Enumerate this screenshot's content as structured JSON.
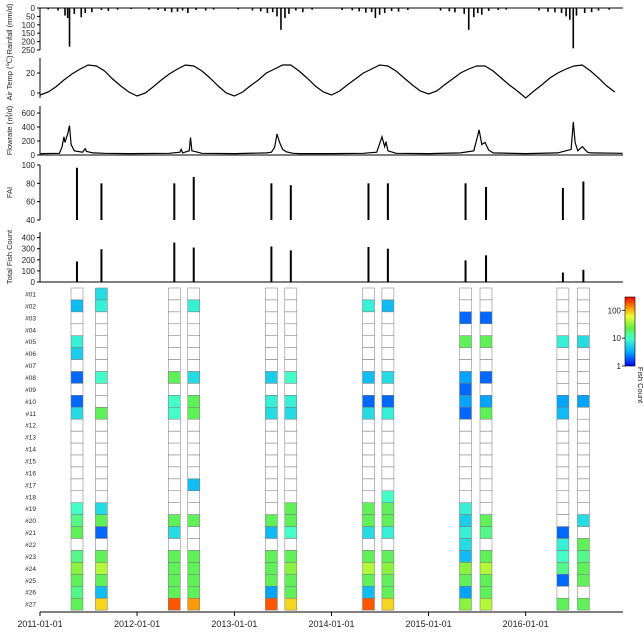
{
  "chart_data": [
    {
      "type": "bar",
      "ylabel": "Rainfall (mm/d)",
      "yticks": [
        0,
        50,
        100,
        150,
        200,
        250
      ],
      "ylim": [
        0,
        250
      ],
      "inverted": true,
      "x": [
        "2011-02-01",
        "2011-03-10",
        "2011-04-05",
        "2011-04-15",
        "2011-04-22",
        "2011-05-10",
        "2011-06-05",
        "2011-06-20",
        "2011-07-15",
        "2011-08-20",
        "2011-09-15",
        "2011-10-20",
        "2011-12-10",
        "2012-02-15",
        "2012-03-20",
        "2012-04-15",
        "2012-05-10",
        "2012-06-01",
        "2012-06-20",
        "2012-07-10",
        "2012-08-10",
        "2012-09-15",
        "2012-10-15",
        "2013-01-15",
        "2013-03-10",
        "2013-04-10",
        "2013-05-05",
        "2013-05-25",
        "2013-06-10",
        "2013-06-25",
        "2013-07-10",
        "2013-07-25",
        "2013-08-20",
        "2013-09-15",
        "2013-10-20",
        "2014-02-10",
        "2014-03-20",
        "2014-04-15",
        "2014-05-10",
        "2014-06-01",
        "2014-06-15",
        "2014-07-01",
        "2014-07-20",
        "2014-08-15",
        "2014-09-10",
        "2014-10-15",
        "2015-02-15",
        "2015-03-20",
        "2015-04-10",
        "2015-05-15",
        "2015-06-01",
        "2015-06-20",
        "2015-07-05",
        "2015-07-20",
        "2015-08-15",
        "2015-09-20",
        "2015-10-20",
        "2016-02-20",
        "2016-03-25",
        "2016-04-20",
        "2016-05-15",
        "2016-06-01",
        "2016-06-15",
        "2016-06-28",
        "2016-07-10",
        "2016-08-10",
        "2016-09-05",
        "2016-10-01",
        "2016-11-10"
      ],
      "values": [
        8,
        15,
        45,
        60,
        230,
        35,
        55,
        30,
        25,
        12,
        18,
        10,
        6,
        10,
        12,
        18,
        25,
        22,
        15,
        30,
        12,
        15,
        10,
        8,
        14,
        20,
        30,
        25,
        50,
        130,
        60,
        35,
        15,
        25,
        10,
        12,
        14,
        20,
        28,
        25,
        60,
        40,
        30,
        18,
        22,
        12,
        15,
        20,
        26,
        35,
        130,
        55,
        30,
        40,
        18,
        12,
        10,
        15,
        22,
        26,
        30,
        50,
        70,
        240,
        45,
        30,
        25,
        15,
        10
      ]
    },
    {
      "type": "line",
      "ylabel": "Air Temp (℃)",
      "yticks": [
        0,
        20
      ],
      "ylim": [
        -5,
        35
      ],
      "x": [
        "2011-01-01",
        "2011-02-01",
        "2011-03-01",
        "2011-04-01",
        "2011-05-01",
        "2011-06-01",
        "2011-07-01",
        "2011-08-01",
        "2011-09-01",
        "2011-10-01",
        "2011-11-01",
        "2011-12-01",
        "2012-01-01",
        "2012-02-01",
        "2012-03-01",
        "2012-04-01",
        "2012-05-01",
        "2012-06-01",
        "2012-07-01",
        "2012-08-01",
        "2012-09-01",
        "2012-10-01",
        "2012-11-01",
        "2012-12-01",
        "2013-01-01",
        "2013-02-01",
        "2013-03-01",
        "2013-04-01",
        "2013-05-01",
        "2013-06-01",
        "2013-07-01",
        "2013-08-01",
        "2013-09-01",
        "2013-10-01",
        "2013-11-01",
        "2013-12-01",
        "2014-01-01",
        "2014-02-01",
        "2014-03-01",
        "2014-04-01",
        "2014-05-01",
        "2014-06-01",
        "2014-07-01",
        "2014-08-01",
        "2014-09-01",
        "2014-10-01",
        "2014-11-01",
        "2014-12-01",
        "2015-01-01",
        "2015-02-01",
        "2015-03-01",
        "2015-04-01",
        "2015-05-01",
        "2015-06-01",
        "2015-07-01",
        "2015-08-01",
        "2015-09-01",
        "2015-10-01",
        "2015-11-01",
        "2015-12-01",
        "2016-01-01",
        "2016-02-01",
        "2016-03-01",
        "2016-04-01",
        "2016-05-01",
        "2016-06-01",
        "2016-07-01",
        "2016-08-01",
        "2016-09-01",
        "2016-10-01",
        "2016-11-01",
        "2016-12-01"
      ],
      "values": [
        -2,
        1,
        6,
        13,
        19,
        24,
        28,
        27,
        22,
        14,
        7,
        1,
        -3,
        0,
        6,
        13,
        19,
        24,
        28,
        27,
        22,
        15,
        7,
        0,
        -3,
        1,
        7,
        13,
        20,
        24,
        28,
        28,
        22,
        15,
        7,
        1,
        -2,
        2,
        8,
        14,
        20,
        24,
        28,
        27,
        22,
        15,
        8,
        2,
        -1,
        2,
        8,
        14,
        20,
        24,
        27,
        27,
        22,
        15,
        8,
        2,
        -5,
        2,
        8,
        15,
        20,
        24,
        27,
        28,
        22,
        15,
        7,
        1
      ]
    },
    {
      "type": "line",
      "ylabel": "Flowrate (㎥/d)",
      "yticks": [
        0,
        200,
        400,
        600
      ],
      "ylim": [
        0,
        700
      ],
      "x": [
        "2011-01-01",
        "2011-03-15",
        "2011-03-25",
        "2011-04-01",
        "2011-04-05",
        "2011-04-10",
        "2011-04-15",
        "2011-04-22",
        "2011-04-28",
        "2011-05-10",
        "2011-06-10",
        "2011-06-20",
        "2011-06-25",
        "2011-07-20",
        "2011-09-01",
        "2011-12-01",
        "2012-05-01",
        "2012-06-10",
        "2012-06-15",
        "2012-06-20",
        "2012-07-15",
        "2012-07-20",
        "2012-07-25",
        "2012-09-01",
        "2013-01-01",
        "2013-05-01",
        "2013-05-20",
        "2013-06-01",
        "2013-06-10",
        "2013-06-20",
        "2013-07-01",
        "2013-07-15",
        "2013-08-10",
        "2013-09-01",
        "2014-01-01",
        "2014-05-01",
        "2014-06-20",
        "2014-07-01",
        "2014-07-10",
        "2014-07-20",
        "2014-07-25",
        "2014-08-01",
        "2014-09-01",
        "2015-01-01",
        "2015-05-01",
        "2015-06-20",
        "2015-07-01",
        "2015-07-10",
        "2015-07-20",
        "2015-08-01",
        "2015-08-15",
        "2015-09-01",
        "2016-01-01",
        "2016-05-01",
        "2016-06-20",
        "2016-06-28",
        "2016-07-05",
        "2016-07-15",
        "2016-08-01",
        "2016-08-20",
        "2016-09-01",
        "2016-12-31"
      ],
      "values": [
        20,
        25,
        120,
        260,
        180,
        240,
        300,
        420,
        150,
        60,
        40,
        90,
        50,
        30,
        25,
        20,
        25,
        40,
        80,
        30,
        60,
        250,
        60,
        25,
        20,
        30,
        40,
        110,
        300,
        180,
        80,
        45,
        25,
        20,
        20,
        25,
        40,
        160,
        260,
        120,
        190,
        60,
        25,
        20,
        30,
        60,
        220,
        360,
        150,
        180,
        70,
        30,
        20,
        30,
        80,
        470,
        180,
        60,
        120,
        40,
        30,
        25
      ]
    },
    {
      "type": "bar",
      "ylabel": "FAI",
      "yticks": [
        40,
        60,
        80,
        100
      ],
      "ylim": [
        40,
        100
      ],
      "x": [
        "2011-05-20",
        "2011-08-20",
        "2012-05-20",
        "2012-08-01",
        "2013-05-20",
        "2013-08-01",
        "2014-05-20",
        "2014-08-01",
        "2015-05-20",
        "2015-08-05",
        "2016-05-20",
        "2016-08-05"
      ],
      "values": [
        97,
        80,
        80,
        87,
        80,
        78,
        80,
        80,
        80,
        76,
        75,
        82
      ]
    },
    {
      "type": "bar",
      "ylabel": "Total Fish Count",
      "yticks": [
        0,
        100,
        200,
        300,
        400
      ],
      "ylim": [
        0,
        450
      ],
      "x": [
        "2011-05-20",
        "2011-08-20",
        "2012-05-20",
        "2012-08-01",
        "2013-05-20",
        "2013-08-01",
        "2014-05-20",
        "2014-08-01",
        "2015-05-20",
        "2015-08-05",
        "2016-05-20",
        "2016-08-05"
      ],
      "values": [
        185,
        295,
        355,
        310,
        320,
        285,
        315,
        300,
        195,
        240,
        85,
        110
      ]
    },
    {
      "type": "heatmap",
      "sites": [
        "#01",
        "#02",
        "#03",
        "#04",
        "#05",
        "#06",
        "#07",
        "#08",
        "#09",
        "#10",
        "#11",
        "#12",
        "#13",
        "#14",
        "#15",
        "#16",
        "#17",
        "#18",
        "#19",
        "#20",
        "#21",
        "#22",
        "#23",
        "#24",
        "#25",
        "#26",
        "#27"
      ],
      "x": [
        "2011-05-20",
        "2011-08-20",
        "2012-05-20",
        "2012-08-01",
        "2013-05-20",
        "2013-08-01",
        "2014-05-20",
        "2014-08-01",
        "2015-05-20",
        "2015-08-05",
        "2016-05-20",
        "2016-08-05"
      ],
      "values": [
        [
          0,
          6,
          0,
          0,
          0,
          0,
          0,
          0,
          0,
          0,
          0,
          0
        ],
        [
          4,
          8,
          0,
          8,
          0,
          0,
          8,
          4,
          0,
          0,
          0,
          0
        ],
        [
          0,
          0,
          0,
          0,
          0,
          0,
          0,
          0,
          2,
          2,
          0,
          0
        ],
        [
          0,
          0,
          0,
          0,
          0,
          0,
          0,
          0,
          0,
          0,
          0,
          0
        ],
        [
          8,
          0,
          0,
          0,
          0,
          0,
          0,
          0,
          20,
          20,
          8,
          6
        ],
        [
          5,
          0,
          0,
          0,
          0,
          0,
          0,
          0,
          0,
          0,
          0,
          0
        ],
        [
          0,
          0,
          0,
          0,
          0,
          0,
          0,
          0,
          0,
          0,
          0,
          0
        ],
        [
          2,
          10,
          20,
          6,
          5,
          10,
          4,
          6,
          3,
          2,
          0,
          0
        ],
        [
          0,
          0,
          0,
          0,
          0,
          0,
          0,
          0,
          2,
          0,
          0,
          0
        ],
        [
          2,
          0,
          10,
          20,
          8,
          8,
          2,
          2,
          3,
          3,
          3,
          3
        ],
        [
          6,
          20,
          10,
          20,
          6,
          6,
          6,
          8,
          2,
          20,
          4,
          0
        ],
        [
          0,
          0,
          0,
          0,
          0,
          0,
          0,
          0,
          0,
          0,
          0,
          0
        ],
        [
          0,
          0,
          0,
          0,
          0,
          0,
          0,
          0,
          0,
          0,
          0,
          0
        ],
        [
          0,
          0,
          0,
          0,
          0,
          0,
          0,
          0,
          0,
          0,
          0,
          0
        ],
        [
          0,
          0,
          0,
          0,
          0,
          0,
          0,
          0,
          0,
          0,
          0,
          0
        ],
        [
          0,
          0,
          0,
          0,
          0,
          0,
          0,
          0,
          0,
          0,
          0,
          0
        ],
        [
          0,
          0,
          0,
          4,
          0,
          0,
          0,
          0,
          0,
          0,
          0,
          0
        ],
        [
          0,
          0,
          0,
          0,
          0,
          0,
          0,
          10,
          0,
          0,
          0,
          0
        ],
        [
          10,
          6,
          0,
          0,
          0,
          20,
          20,
          20,
          8,
          0,
          0,
          0
        ],
        [
          15,
          20,
          20,
          20,
          20,
          20,
          20,
          20,
          5,
          20,
          0,
          6
        ],
        [
          20,
          2,
          6,
          0,
          4,
          10,
          6,
          8,
          8,
          15,
          2,
          0
        ],
        [
          0,
          0,
          0,
          0,
          0,
          0,
          0,
          0,
          6,
          0,
          8,
          20
        ],
        [
          15,
          20,
          20,
          20,
          20,
          20,
          20,
          20,
          4,
          20,
          10,
          15
        ],
        [
          30,
          40,
          20,
          20,
          20,
          30,
          40,
          30,
          30,
          40,
          15,
          20
        ],
        [
          20,
          20,
          20,
          20,
          20,
          20,
          20,
          20,
          20,
          20,
          2,
          20
        ],
        [
          15,
          4,
          20,
          20,
          3,
          20,
          4,
          20,
          3,
          20,
          0,
          0
        ],
        [
          20,
          80,
          180,
          120,
          180,
          80,
          180,
          80,
          30,
          40,
          20,
          20
        ]
      ],
      "colorbar_label": "Fish Count",
      "colorbar_ticks": [
        "1",
        "10",
        "100"
      ],
      "colorscale": "log",
      "clim": [
        1,
        300
      ]
    }
  ],
  "x_axis": {
    "ticks": [
      "2011-01-01",
      "2012-01-01",
      "2013-01-01",
      "2014-01-01",
      "2015-01-01",
      "2016-01-01"
    ],
    "range": [
      "2011-01-01",
      "2017-01-01"
    ]
  }
}
